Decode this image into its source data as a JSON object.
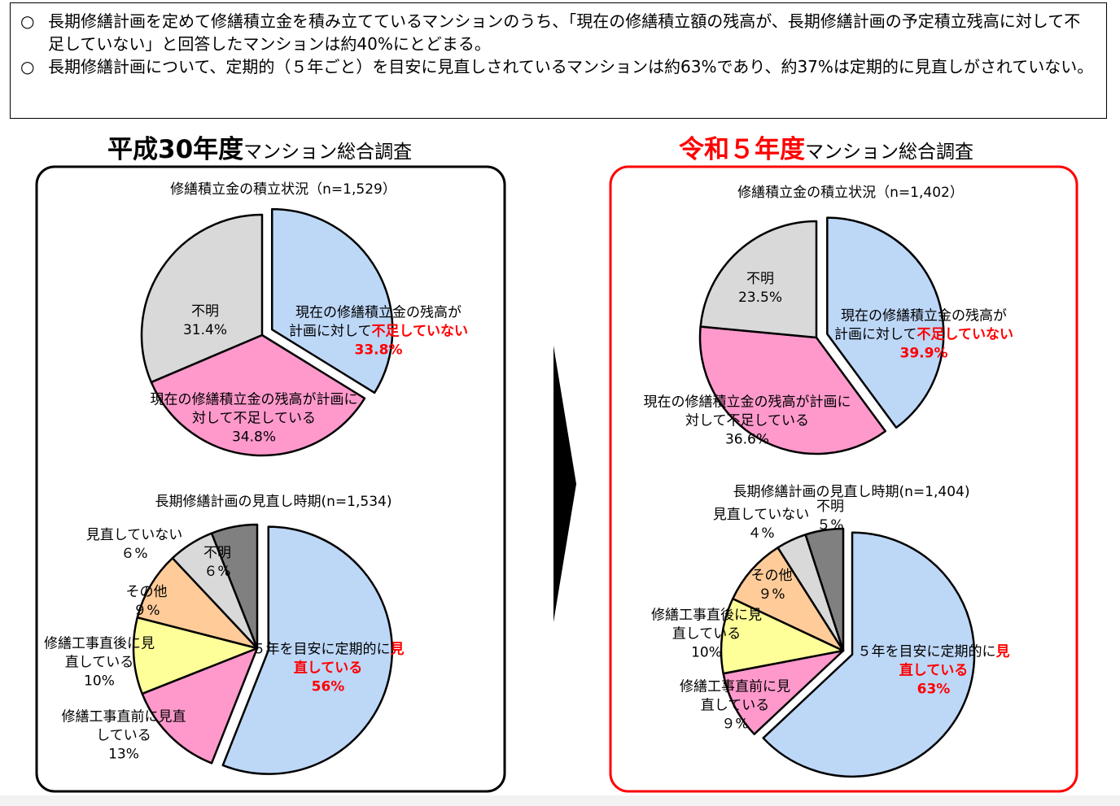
{
  "bullets": [
    "長期修繕計画を定めて修繕積立金を積み立てているマンションのうち、「現在の修繕積立額の残高が、長期修繕計画の予定積立残高に対して不足していない」と回答したマンションは約40%にとどまる。",
    "長期修繕計画について、定期的（５年ごと）を目安に見直しされているマンションは約63%であり、約37%は定期的に見直しがされていない。"
  ],
  "bullet_mark": "○",
  "panels": [
    {
      "title_main": "平成30年度",
      "title_sub": "マンション総合調査",
      "color": "#000000"
    },
    {
      "title_main": "令和５年度",
      "title_sub": "マンション総合調査",
      "color": "#ff0000"
    }
  ],
  "chart_data": [
    {
      "type": "pie",
      "title": "修繕積立金の積立状況（n=1,529）",
      "categories": [
        [
          "現在の修繕積立金の残高が計画に対して",
          "不足していない"
        ],
        [
          "現在の修繕積立金の残高が計画に対して不足している"
        ],
        [
          "不明"
        ]
      ],
      "values": [
        33.8,
        34.8,
        31.4
      ],
      "value_labels": [
        "33.8%",
        "34.8%",
        "31.4%"
      ],
      "colors": [
        "#bdd7f7",
        "#ff99cc",
        "#d9d9d9"
      ],
      "exploded_slice": 0,
      "emphasis_color": "#ff0000"
    },
    {
      "type": "pie",
      "title": "長期修繕計画の見直し時期(n=1,534)",
      "categories": [
        [
          "５年を目安に定期的に",
          "見直している"
        ],
        [
          "修繕工事直前に見直している"
        ],
        [
          "修繕工事直後に見直している"
        ],
        [
          "その他"
        ],
        [
          "見直していない"
        ],
        [
          "不明"
        ]
      ],
      "values": [
        56,
        13,
        10,
        9,
        6,
        6
      ],
      "value_labels": [
        "56%",
        "13%",
        "10%",
        "９%",
        "６%",
        "６%"
      ],
      "colors": [
        "#bdd7f7",
        "#ff99cc",
        "#ffff99",
        "#ffcc99",
        "#d9d9d9",
        "#808080"
      ],
      "exploded_slice": 0,
      "emphasis_color": "#ff0000"
    },
    {
      "type": "pie",
      "title": "修繕積立金の積立状況（n=1,402）",
      "categories": [
        [
          "現在の修繕積立金の残高が計画に対して",
          "不足していない"
        ],
        [
          "現在の修繕積立金の残高が計画に対して不足している"
        ],
        [
          "不明"
        ]
      ],
      "values": [
        39.9,
        36.6,
        23.5
      ],
      "value_labels": [
        "39.9%",
        "36.6%",
        "23.5%"
      ],
      "colors": [
        "#bdd7f7",
        "#ff99cc",
        "#d9d9d9"
      ],
      "exploded_slice": 0,
      "emphasis_color": "#ff0000"
    },
    {
      "type": "pie",
      "title": "長期修繕計画の見直し時期(n=1,404)",
      "categories": [
        [
          "５年を目安に定期的に",
          "見直している"
        ],
        [
          "修繕工事直前に見直している"
        ],
        [
          "修繕工事直後に見直している"
        ],
        [
          "その他"
        ],
        [
          "見直していない"
        ],
        [
          "不明"
        ]
      ],
      "values": [
        63,
        9,
        10,
        9,
        4,
        5
      ],
      "value_labels": [
        "63%",
        "９%",
        "10%",
        "９%",
        "４%",
        "５%"
      ],
      "colors": [
        "#bdd7f7",
        "#ff99cc",
        "#ffff99",
        "#ffcc99",
        "#d9d9d9",
        "#808080"
      ],
      "exploded_slice": 0,
      "emphasis_color": "#ff0000"
    }
  ]
}
